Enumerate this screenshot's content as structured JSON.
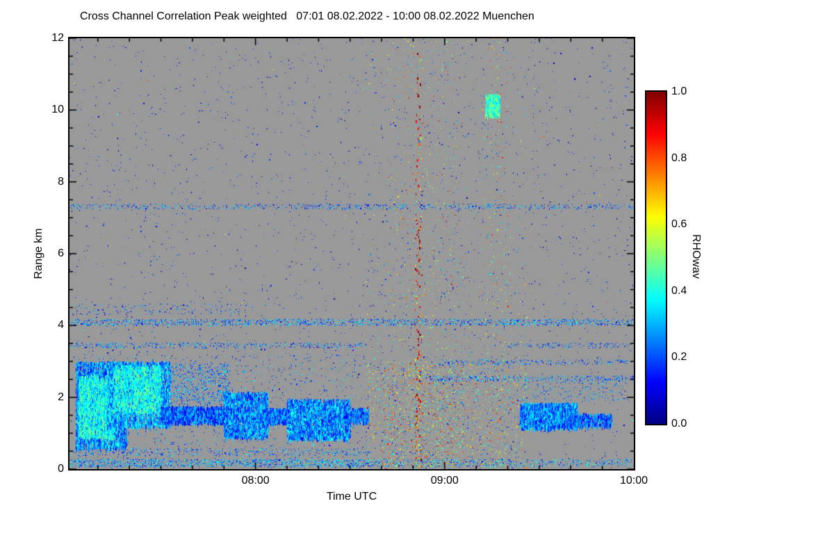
{
  "title": "Cross Channel Correlation Peak weighted   07:01 08.02.2022 - 10:00 08.02.2022 Muenchen",
  "chart_data": {
    "type": "heatmap",
    "title": "Cross Channel Correlation Peak weighted",
    "time_window": "07:01 08.02.2022 - 10:00 08.02.2022",
    "site": "Muenchen",
    "xlabel": "Time UTC",
    "ylabel": "Range km",
    "colorbar_label": "RHOwav",
    "x_domain": [
      1,
      180
    ],
    "x_domain_note": "minutes after 07:00 UTC, axis spans 07:01 to 10:00",
    "ylim": [
      0,
      12
    ],
    "y_ticks": [
      0,
      2,
      4,
      6,
      8,
      10,
      12
    ],
    "x_ticks": [
      {
        "label": "08:00",
        "t": 60
      },
      {
        "label": "09:00",
        "t": 120
      },
      {
        "label": "10:00",
        "t": 180
      }
    ],
    "colorbar": {
      "min": 0.0,
      "max": 1.0,
      "ticks": [
        "0.0",
        "0.2",
        "0.4",
        "0.6",
        "0.8",
        "1.0"
      ]
    },
    "colors": {
      "background_no_data": "#999999",
      "colormap": "rainbow (0.0 dark blue -> 0.2 blue -> 0.4 cyan-green -> 0.6 yellow -> 0.8 orange -> 1.0 dark red)"
    },
    "features": [
      {
        "kind": "speckle",
        "label": "background-noise-blue",
        "t": [
          1,
          180
        ],
        "z": [
          0,
          12
        ],
        "n": 2200,
        "v": [
          0.04,
          0.24
        ]
      },
      {
        "kind": "speckle",
        "label": "background-noise-colored",
        "t": [
          1,
          180
        ],
        "z": [
          0,
          12
        ],
        "n": 90,
        "v": [
          0.3,
          0.85
        ]
      },
      {
        "kind": "speckle",
        "label": "line-7.3km",
        "t": [
          1,
          180
        ],
        "z": [
          7.24,
          7.38
        ],
        "n": 800,
        "v": [
          0.08,
          0.38
        ]
      },
      {
        "kind": "speckle",
        "label": "line-4.1km",
        "t": [
          1,
          180
        ],
        "z": [
          4.0,
          4.18
        ],
        "n": 1700,
        "v": [
          0.08,
          0.42
        ]
      },
      {
        "kind": "speckle",
        "label": "line-3.45km-left",
        "t": [
          1,
          95
        ],
        "z": [
          3.38,
          3.52
        ],
        "n": 520,
        "v": [
          0.08,
          0.4
        ]
      },
      {
        "kind": "speckle",
        "label": "line-3.45km-right",
        "t": [
          140,
          180
        ],
        "z": [
          3.38,
          3.52
        ],
        "n": 160,
        "v": [
          0.08,
          0.35
        ]
      },
      {
        "kind": "speckle",
        "label": "surface-line-left",
        "t": [
          1,
          96
        ],
        "z": [
          0.06,
          0.28
        ],
        "n": 1500,
        "v": [
          0.12,
          0.45
        ]
      },
      {
        "kind": "speckle",
        "label": "surface-line-right",
        "t": [
          96,
          180
        ],
        "z": [
          0.06,
          0.28
        ],
        "n": 700,
        "v": [
          0.1,
          0.5
        ]
      },
      {
        "kind": "speckle",
        "label": "line-0.5km-left",
        "t": [
          1,
          96
        ],
        "z": [
          0.38,
          0.58
        ],
        "n": 450,
        "v": [
          0.1,
          0.4
        ]
      },
      {
        "kind": "blob",
        "label": "cloud-a",
        "t": [
          3,
          19
        ],
        "z": [
          0.6,
          3.0
        ],
        "n": 3800,
        "v": [
          0.12,
          0.42
        ]
      },
      {
        "kind": "blob",
        "label": "cloud-a-core",
        "t": [
          4,
          15
        ],
        "z": [
          0.9,
          2.6
        ],
        "n": 1800,
        "v": [
          0.3,
          0.5
        ]
      },
      {
        "kind": "blob",
        "label": "cloud-b",
        "t": [
          13,
          33
        ],
        "z": [
          1.2,
          3.0
        ],
        "n": 3800,
        "v": [
          0.14,
          0.44
        ]
      },
      {
        "kind": "blob",
        "label": "cloud-b-core",
        "t": [
          15,
          30
        ],
        "z": [
          1.6,
          2.9
        ],
        "n": 1500,
        "v": [
          0.3,
          0.5
        ]
      },
      {
        "kind": "blob",
        "label": "band-1.5km",
        "t": [
          30,
          52
        ],
        "z": [
          1.3,
          1.75
        ],
        "n": 1800,
        "v": [
          0.08,
          0.35
        ]
      },
      {
        "kind": "speckle",
        "label": "cloud-c-speckle",
        "t": [
          33,
          52
        ],
        "z": [
          1.8,
          2.95
        ],
        "n": 800,
        "v": [
          0.12,
          0.4
        ]
      },
      {
        "kind": "blob",
        "label": "cloud-d",
        "t": [
          50,
          64
        ],
        "z": [
          0.9,
          2.15
        ],
        "n": 2200,
        "v": [
          0.12,
          0.4
        ]
      },
      {
        "kind": "blob",
        "label": "band-1.5km-2",
        "t": [
          63,
          72
        ],
        "z": [
          1.3,
          1.7
        ],
        "n": 700,
        "v": [
          0.1,
          0.35
        ]
      },
      {
        "kind": "blob",
        "label": "cloud-e",
        "t": [
          70,
          90
        ],
        "z": [
          0.85,
          1.95
        ],
        "n": 3000,
        "v": [
          0.12,
          0.42
        ]
      },
      {
        "kind": "blob",
        "label": "band-1.5km-3",
        "t": [
          88,
          96
        ],
        "z": [
          1.3,
          1.7
        ],
        "n": 450,
        "v": [
          0.1,
          0.35
        ]
      },
      {
        "kind": "speckle",
        "label": "left-region-speckle",
        "t": [
          3,
          96
        ],
        "z": [
          0.3,
          3.2
        ],
        "n": 1100,
        "v": [
          0.1,
          0.4
        ]
      },
      {
        "kind": "speckle",
        "label": "left-4.4km-speckle",
        "t": [
          1,
          60
        ],
        "z": [
          4.3,
          4.6
        ],
        "n": 200,
        "v": [
          0.08,
          0.35
        ]
      },
      {
        "kind": "vstreak",
        "label": "sun-streak-low",
        "t": [
          110.6,
          112.8
        ],
        "z": [
          0.1,
          7.0
        ],
        "p": 0.75,
        "v": [
          0.3,
          1.0
        ]
      },
      {
        "kind": "vstreak",
        "label": "sun-streak-high",
        "t": [
          110.8,
          112.6
        ],
        "z": [
          7.0,
          11.6
        ],
        "p": 0.38,
        "v": [
          0.3,
          1.0
        ]
      },
      {
        "kind": "speckle",
        "label": "streak-halo-low",
        "t": [
          100,
          126
        ],
        "z": [
          0,
          3
        ],
        "n": 900,
        "v": [
          0.15,
          0.95
        ]
      },
      {
        "kind": "speckle",
        "label": "streak-halo-high",
        "t": [
          102,
          124
        ],
        "z": [
          3,
          12
        ],
        "n": 420,
        "v": [
          0.15,
          0.9
        ]
      },
      {
        "kind": "speckle",
        "label": "convective-speckle-low",
        "t": [
          95,
          146
        ],
        "z": [
          0,
          3
        ],
        "n": 1500,
        "v": [
          0.12,
          0.9
        ]
      },
      {
        "kind": "speckle",
        "label": "convective-speckle-mid",
        "t": [
          95,
          146
        ],
        "z": [
          3,
          6
        ],
        "n": 280,
        "v": [
          0.15,
          0.8
        ]
      },
      {
        "kind": "speckle",
        "label": "convective-speckle-high",
        "t": [
          95,
          146
        ],
        "z": [
          6,
          12
        ],
        "n": 130,
        "v": [
          0.15,
          0.8
        ]
      },
      {
        "kind": "speckle",
        "label": "secondary-streak",
        "t": [
          132,
          140
        ],
        "z": [
          0,
          12
        ],
        "n": 260,
        "v": [
          0.25,
          0.9
        ]
      },
      {
        "kind": "blob",
        "label": "cirrus-blob-10km",
        "t": [
          133,
          137.5
        ],
        "z": [
          9.85,
          10.45
        ],
        "n": 550,
        "v": [
          0.33,
          0.55
        ]
      },
      {
        "kind": "blob",
        "label": "right-cloud",
        "t": [
          144,
          162
        ],
        "z": [
          1.15,
          1.85
        ],
        "n": 2300,
        "v": [
          0.12,
          0.4
        ]
      },
      {
        "kind": "blob",
        "label": "right-cloud-tail",
        "t": [
          158,
          173
        ],
        "z": [
          1.2,
          1.55
        ],
        "n": 600,
        "v": [
          0.1,
          0.35
        ]
      },
      {
        "kind": "speckle",
        "label": "right-2-2.6km",
        "t": [
          145,
          178
        ],
        "z": [
          1.9,
          2.6
        ],
        "n": 300,
        "v": [
          0.12,
          0.4
        ]
      },
      {
        "kind": "speckle",
        "label": "line-2.5km-right",
        "t": [
          115,
          180
        ],
        "z": [
          2.45,
          2.6
        ],
        "n": 330,
        "v": [
          0.08,
          0.38
        ]
      },
      {
        "kind": "speckle",
        "label": "line-3.0km-right",
        "t": [
          118,
          178
        ],
        "z": [
          2.9,
          3.05
        ],
        "n": 280,
        "v": [
          0.08,
          0.38
        ]
      }
    ]
  }
}
